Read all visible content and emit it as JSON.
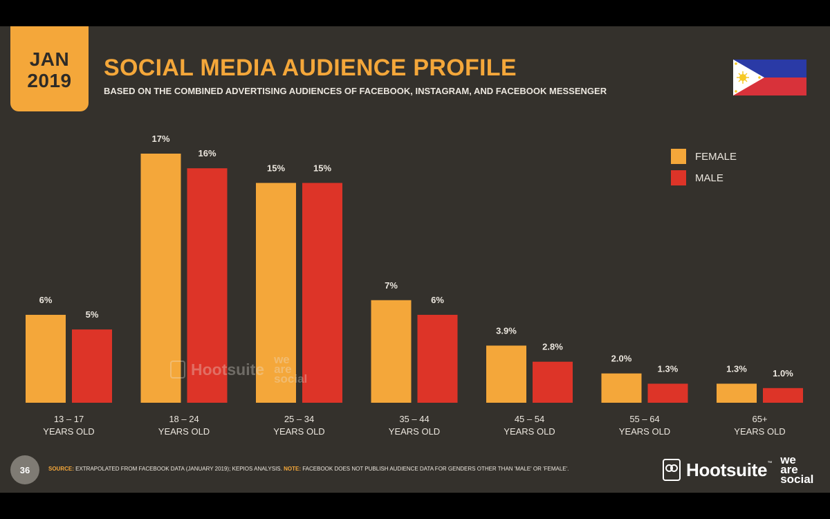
{
  "header": {
    "date_month": "JAN",
    "date_year": "2019",
    "title": "SOCIAL MEDIA AUDIENCE PROFILE",
    "subtitle": "BASED ON THE COMBINED ADVERTISING AUDIENCES OF FACEBOOK, INSTAGRAM, AND FACEBOOK MESSENGER"
  },
  "colors": {
    "background": "#34312c",
    "female": "#f4a73a",
    "male": "#dd3428",
    "text": "#ece7df",
    "accent": "#f4a73a"
  },
  "flag": {
    "icon": "philippines-flag-icon"
  },
  "chart_data": {
    "type": "bar",
    "title": "SOCIAL MEDIA AUDIENCE PROFILE",
    "categories": [
      [
        "13 – 17",
        "YEARS OLD"
      ],
      [
        "18 – 24",
        "YEARS OLD"
      ],
      [
        "25 – 34",
        "YEARS OLD"
      ],
      [
        "35 – 44",
        "YEARS OLD"
      ],
      [
        "45 – 54",
        "YEARS OLD"
      ],
      [
        "55 – 64",
        "YEARS OLD"
      ],
      [
        "65+",
        "YEARS OLD"
      ]
    ],
    "series": [
      {
        "name": "FEMALE",
        "values": [
          6,
          17,
          15,
          7,
          3.9,
          2.0,
          1.3
        ],
        "labels": [
          "6%",
          "17%",
          "15%",
          "7%",
          "3.9%",
          "2.0%",
          "1.3%"
        ]
      },
      {
        "name": "MALE",
        "values": [
          5,
          16,
          15,
          6,
          2.8,
          1.3,
          1.0
        ],
        "labels": [
          "5%",
          "16%",
          "15%",
          "6%",
          "2.8%",
          "1.3%",
          "1.0%"
        ]
      }
    ],
    "ylim": [
      0,
      17
    ],
    "legend_position": "top-right",
    "grid": false
  },
  "watermark": {
    "brand": "Hootsuite",
    "partner": [
      "we",
      "are",
      "social"
    ]
  },
  "footer": {
    "page_number": "36",
    "source_label": "SOURCE:",
    "source_text": " EXTRAPOLATED FROM FACEBOOK DATA (JANUARY 2019); KEPIOS ANALYSIS. ",
    "note_label": "NOTE:",
    "note_text": " FACEBOOK DOES NOT PUBLISH AUDIENCE DATA FOR GENDERS OTHER THAN 'MALE' OR 'FEMALE'.",
    "brand": "Hootsuite",
    "brand_tm": "™",
    "partner": [
      "we",
      "are",
      "social"
    ]
  }
}
